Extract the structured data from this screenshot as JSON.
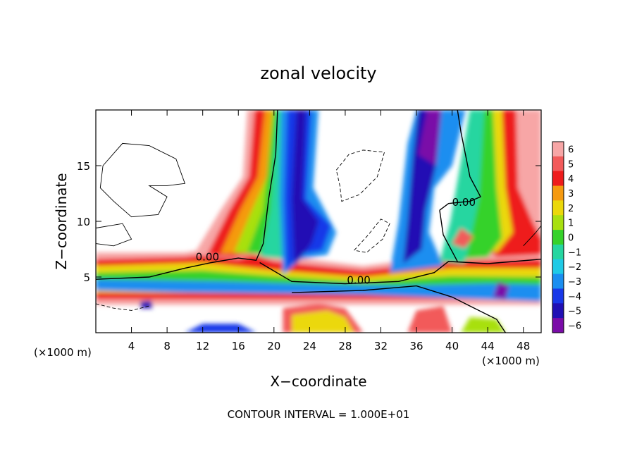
{
  "chart_data": {
    "type": "heatmap",
    "title": "zonal velocity",
    "xlabel": "X−coordinate",
    "ylabel": "Z−coordinate",
    "x_unit_left": "(×1000 m)",
    "x_unit_right": "(×1000 m)",
    "footer": "CONTOUR INTERVAL = 1.000E+01",
    "xlim": [
      0,
      50
    ],
    "ylim": [
      0,
      20
    ],
    "x_ticks": [
      4,
      8,
      12,
      16,
      20,
      24,
      28,
      32,
      36,
      40,
      44,
      48
    ],
    "y_ticks": [
      5,
      10,
      15
    ],
    "colorbar": {
      "levels": [
        6,
        5,
        4,
        3,
        2,
        1,
        0,
        -1,
        -2,
        -3,
        -4,
        -5,
        -6
      ],
      "labels": [
        "6",
        "5",
        "4",
        "3",
        "2",
        "1",
        "0",
        "−1",
        "−2",
        "−3",
        "−4",
        "−5",
        "−6"
      ],
      "colors": [
        "#f7a6a6",
        "#f25a5a",
        "#ee1c1c",
        "#f59a10",
        "#ebd80a",
        "#a8e010",
        "#36d22a",
        "#25d6a0",
        "#1fcae6",
        "#1a8ef0",
        "#1838e8",
        "#2010b4",
        "#7a0ca8"
      ]
    },
    "contour_labels": [
      {
        "text": "0.00",
        "x": 11.2,
        "y": 6.8
      },
      {
        "text": "0.00",
        "x": 28.2,
        "y": 4.7
      },
      {
        "text": "0.00",
        "x": 40.0,
        "y": 11.7
      }
    ],
    "grid": false,
    "legend": "colorbar-right"
  }
}
